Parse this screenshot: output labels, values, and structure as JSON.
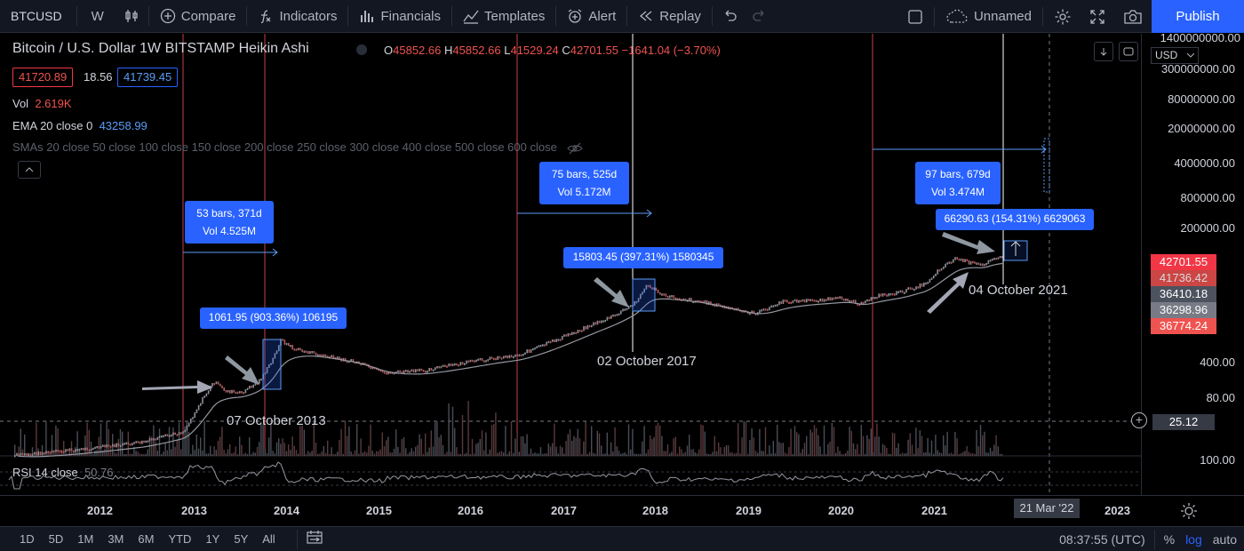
{
  "toolbar": {
    "symbol": "BTCUSD",
    "interval": "W",
    "compare": "Compare",
    "indicators": "Indicators",
    "financials": "Financials",
    "templates": "Templates",
    "alert": "Alert",
    "replay": "Replay",
    "layout_name": "Unnamed",
    "publish": "Publish"
  },
  "legend": {
    "title": "Bitcoin / U.S. Dollar  1W  BITSTAMP  Heikin Ashi",
    "o_label": "O",
    "o": "45852.66",
    "h_label": "H",
    "h": "45852.66",
    "l_label": "L",
    "l": "41529.24",
    "c_label": "C",
    "c": "42701.55",
    "change": "−1641.04 (−3.70%)",
    "bid": "41720.89",
    "spread": "18.56",
    "ask": "41739.45",
    "vol_label": "Vol",
    "vol": "2.619K",
    "ema_label": "EMA 20 close 0",
    "ema": "43258.99",
    "sma_label": "SMAs 20 close 50 close 100 close 150 close 200 close 250 close 300 close 400 close 500 close 600 close",
    "rsi_label": "RSI 14 close",
    "rsi": "50.76"
  },
  "annotations": {
    "range1": {
      "bars": "53 bars, 371d",
      "vol": "Vol 4.525M"
    },
    "range2": {
      "bars": "75 bars, 525d",
      "vol": "Vol 5.172M"
    },
    "range3": {
      "bars": "97 bars, 679d",
      "vol": "Vol 3.474M"
    },
    "pct1": "1061.95 (903.36%) 106195",
    "pct2": "15803.45 (397.31%) 1580345",
    "pct3": "66290.63 (154.31%) 6629063",
    "date1": "07 October 2013",
    "date2": "02 October 2017",
    "date3": "04 October 2021"
  },
  "price_scale": {
    "ticks": [
      "1400000000.00",
      "300000000.00",
      "80000000.00",
      "20000000.00",
      "4000000.00",
      "800000.00",
      "200000.00",
      "400.00",
      "80.00",
      "25.12",
      "100.00"
    ],
    "currency": "USD",
    "badges": [
      "42701.55",
      "41736.42",
      "36410.18",
      "36298.96",
      "36774.24"
    ],
    "colors": {
      "red": "#f23645",
      "light_red": "#ef5350",
      "blue_gray": "#4c525e",
      "gray": "#787b86"
    }
  },
  "time_scale": {
    "ticks": [
      "2012",
      "2013",
      "2014",
      "2015",
      "2016",
      "2017",
      "2018",
      "2019",
      "2020",
      "2021",
      "2023"
    ],
    "cursor_date": "21 Mar '22"
  },
  "bottom_bar": {
    "ranges": [
      "1D",
      "5D",
      "1M",
      "3M",
      "6M",
      "YTD",
      "1Y",
      "5Y",
      "All"
    ],
    "time": "08:37:55 (UTC)",
    "percent": "%",
    "log": "log",
    "auto": "auto"
  },
  "colors": {
    "accent": "#2962ff",
    "background": "#000000",
    "toolbar": "#131722",
    "halving_line": "#f7525f"
  }
}
